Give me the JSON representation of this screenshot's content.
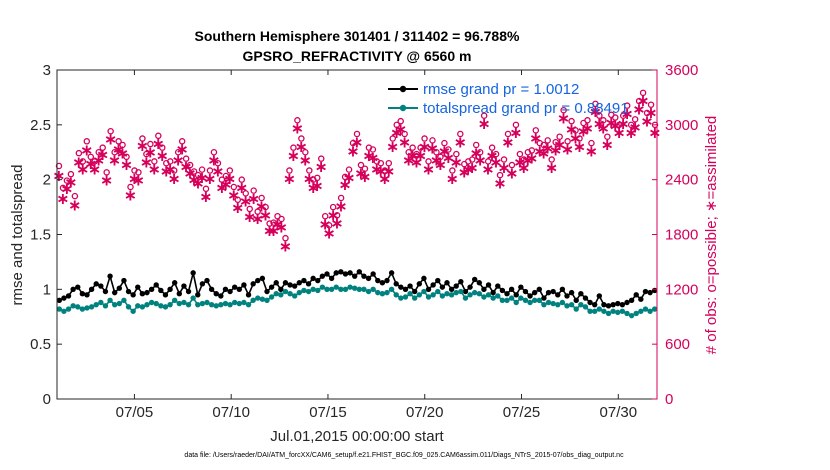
{
  "chart_data": {
    "type": "line",
    "title_line1": "Southern Hemisphere 301401 / 311402 = 96.788%",
    "title_line2": "GPSRO_REFRACTIVITY @ 6560 m",
    "xlabel": "Jul.01,2015 00:00:00 start",
    "ylabel_left": "rmse and totalspread",
    "ylabel_right": "# of obs: o=possible; ∗=assimilated",
    "footnote": "data file: /Users/raeder/DAI/ATM_forcXX/CAM6_setup/f.e21.FHIST_BGC.f09_025.CAM6assim.011/Diags_NTrS_2015-07/obs_diag_output.nc",
    "xlim": [
      1,
      32
    ],
    "ylim_left": [
      0,
      3
    ],
    "ylim_right": [
      0,
      3600
    ],
    "x_ticks": [
      5,
      10,
      15,
      20,
      25,
      30
    ],
    "x_tick_labels": [
      "07/05",
      "07/10",
      "07/15",
      "07/20",
      "07/25",
      "07/30"
    ],
    "y_ticks_left": [
      "0",
      "0.5",
      "1",
      "1.5",
      "2",
      "2.5",
      "3"
    ],
    "y_ticks_right": [
      "0",
      "600",
      "1200",
      "1800",
      "2400",
      "3000",
      "3600"
    ],
    "grid": false,
    "legend_position": "top-right",
    "colors": {
      "rmse": "#000000",
      "spread": "#00827f",
      "obs": "#d6005b",
      "legend_text": "#1565e0"
    },
    "series": [
      {
        "name": "rmse grand pr = 1.0012",
        "axis": "left",
        "values": [
          0.9,
          0.92,
          0.94,
          1.0,
          1.02,
          0.96,
          0.95,
          1.0,
          1.05,
          1.03,
          0.98,
          1.12,
          0.97,
          1.01,
          1.08,
          0.98,
          0.95,
          1.02,
          0.96,
          0.97,
          1.0,
          1.04,
          0.99,
          0.95,
          1.0,
          1.06,
          0.96,
          1.03,
          0.98,
          1.15,
          0.95,
          1.05,
          1.08,
          1.0,
          0.96,
          0.94,
          1.0,
          0.98,
          1.02,
          1.0,
          1.04,
          0.95,
          1.05,
          1.08,
          1.1,
          0.98,
          1.02,
          1.06,
          1.0,
          1.06,
          1.04,
          1.03,
          1.06,
          1.08,
          1.05,
          1.1,
          1.08,
          1.12,
          1.14,
          1.1,
          1.15,
          1.16,
          1.14,
          1.15,
          1.12,
          1.16,
          1.12,
          1.1,
          1.14,
          1.08,
          1.06,
          1.08,
          1.15,
          1.05,
          1.02,
          1.0,
          1.03,
          0.98,
          1.05,
          1.1,
          1.0,
          1.04,
          1.08,
          1.02,
          1.06,
          1.0,
          1.03,
          1.07,
          0.98,
          1.02,
          1.09,
          1.06,
          1.0,
          1.04,
          0.97,
          1.03,
          0.99,
          0.96,
          1.0,
          0.95,
          1.02,
          0.98,
          0.94,
          0.97,
          1.0,
          0.92,
          0.97,
          0.98,
          0.95,
          1.0,
          0.94,
          0.97,
          0.9,
          0.96,
          0.92,
          0.88,
          0.86,
          0.94,
          0.86,
          0.85,
          0.86,
          0.87,
          0.86,
          0.88,
          0.9,
          0.95,
          0.91,
          0.98,
          0.97,
          0.99
        ]
      },
      {
        "name": "totalspread grand pr = 0.88491",
        "axis": "left",
        "values": [
          0.82,
          0.8,
          0.82,
          0.85,
          0.84,
          0.82,
          0.83,
          0.84,
          0.86,
          0.88,
          0.85,
          0.9,
          0.86,
          0.87,
          0.9,
          0.84,
          0.8,
          0.85,
          0.84,
          0.86,
          0.88,
          0.87,
          0.85,
          0.84,
          0.86,
          0.9,
          0.87,
          0.88,
          0.86,
          0.92,
          0.86,
          0.87,
          0.88,
          0.86,
          0.85,
          0.86,
          0.87,
          0.86,
          0.88,
          0.87,
          0.88,
          0.86,
          0.9,
          0.92,
          0.91,
          0.9,
          0.93,
          0.96,
          0.95,
          0.98,
          0.96,
          0.94,
          0.97,
          0.99,
          0.98,
          1.0,
          0.99,
          1.02,
          1.0,
          1.0,
          1.02,
          1.0,
          1.0,
          1.02,
          1.01,
          1.0,
          1.0,
          0.98,
          1.0,
          0.97,
          0.96,
          0.97,
          1.0,
          0.95,
          0.92,
          0.93,
          0.96,
          0.92,
          0.95,
          0.98,
          0.93,
          0.95,
          0.98,
          0.94,
          0.96,
          0.95,
          0.97,
          0.98,
          0.92,
          0.95,
          0.97,
          0.96,
          0.93,
          0.95,
          0.92,
          0.94,
          0.9,
          0.9,
          0.92,
          0.88,
          0.92,
          0.9,
          0.88,
          0.9,
          0.9,
          0.86,
          0.88,
          0.87,
          0.86,
          0.88,
          0.85,
          0.86,
          0.82,
          0.86,
          0.84,
          0.8,
          0.8,
          0.82,
          0.8,
          0.78,
          0.8,
          0.79,
          0.8,
          0.78,
          0.76,
          0.78,
          0.8,
          0.82,
          0.8,
          0.82
        ]
      },
      {
        "name": "possible",
        "axis": "right",
        "marker": "o",
        "values": [
          2550,
          2310,
          2390,
          2460,
          2220,
          2690,
          2600,
          2820,
          2650,
          2600,
          2700,
          2750,
          2480,
          2930,
          2700,
          2820,
          2780,
          2650,
          2320,
          2500,
          2480,
          2850,
          2680,
          2790,
          2600,
          2880,
          2750,
          2580,
          2600,
          2500,
          2700,
          2820,
          2630,
          2560,
          2490,
          2450,
          2510,
          2300,
          2500,
          2700,
          2580,
          2400,
          2440,
          2500,
          2320,
          2180,
          2400,
          2250,
          2080,
          2280,
          2050,
          2200,
          2100,
          1920,
          1930,
          2000,
          1970,
          1760,
          2500,
          2750,
          3050,
          2850,
          2700,
          2500,
          2400,
          2420,
          2630,
          2000,
          1900,
          2100,
          2010,
          2200,
          2430,
          2510,
          2800,
          2900,
          2560,
          2520,
          2750,
          2730,
          2600,
          2580,
          2500,
          2580,
          2850,
          3000,
          3040,
          2900,
          2700,
          2750,
          2680,
          2750,
          2850,
          2600,
          2830,
          2700,
          2650,
          2800,
          2730,
          2500,
          2680,
          2900,
          2570,
          2600,
          2620,
          2780,
          2700,
          3100,
          2600,
          2750,
          2680,
          2450,
          2620,
          2900,
          2560,
          3000,
          2680,
          2620,
          2700,
          2720,
          2940,
          2800,
          2780,
          2830,
          2620,
          2810,
          2870,
          3160,
          2820,
          3040,
          2940,
          2850,
          3020,
          3050,
          2800,
          3230,
          3100,
          3050,
          2870,
          3110,
          3080,
          3000,
          3100,
          3210,
          3000,
          3060,
          3260,
          3350,
          3130,
          3220,
          3000
        ]
      },
      {
        "name": "assimilated",
        "axis": "right",
        "marker": "*",
        "values": [
          2450,
          2200,
          2310,
          2380,
          2130,
          2600,
          2520,
          2730,
          2580,
          2520,
          2620,
          2680,
          2400,
          2850,
          2620,
          2740,
          2700,
          2570,
          2240,
          2420,
          2400,
          2780,
          2600,
          2710,
          2520,
          2800,
          2670,
          2500,
          2520,
          2420,
          2620,
          2740,
          2550,
          2480,
          2410,
          2370,
          2430,
          2220,
          2420,
          2620,
          2500,
          2320,
          2360,
          2420,
          2240,
          2100,
          2320,
          2170,
          2000,
          2200,
          1980,
          2120,
          2020,
          1850,
          1850,
          1920,
          1890,
          1680,
          2420,
          2670,
          2970,
          2770,
          2620,
          2420,
          2320,
          2340,
          2550,
          1920,
          1820,
          2020,
          1930,
          2120,
          2350,
          2430,
          2720,
          2820,
          2480,
          2440,
          2670,
          2650,
          2520,
          2500,
          2420,
          2500,
          2770,
          2920,
          2960,
          2820,
          2620,
          2670,
          2600,
          2670,
          2770,
          2520,
          2750,
          2620,
          2570,
          2720,
          2650,
          2420,
          2600,
          2820,
          2490,
          2520,
          2540,
          2700,
          2620,
          3020,
          2520,
          2670,
          2600,
          2370,
          2540,
          2820,
          2480,
          2920,
          2600,
          2540,
          2620,
          2640,
          2860,
          2720,
          2700,
          2750,
          2540,
          2730,
          2790,
          3080,
          2740,
          2960,
          2860,
          2770,
          2940,
          2970,
          2720,
          3150,
          3020,
          2970,
          2790,
          3030,
          3000,
          2920,
          3020,
          3130,
          2920,
          2980,
          3180,
          3270,
          3050,
          3140,
          2920
        ]
      }
    ]
  }
}
